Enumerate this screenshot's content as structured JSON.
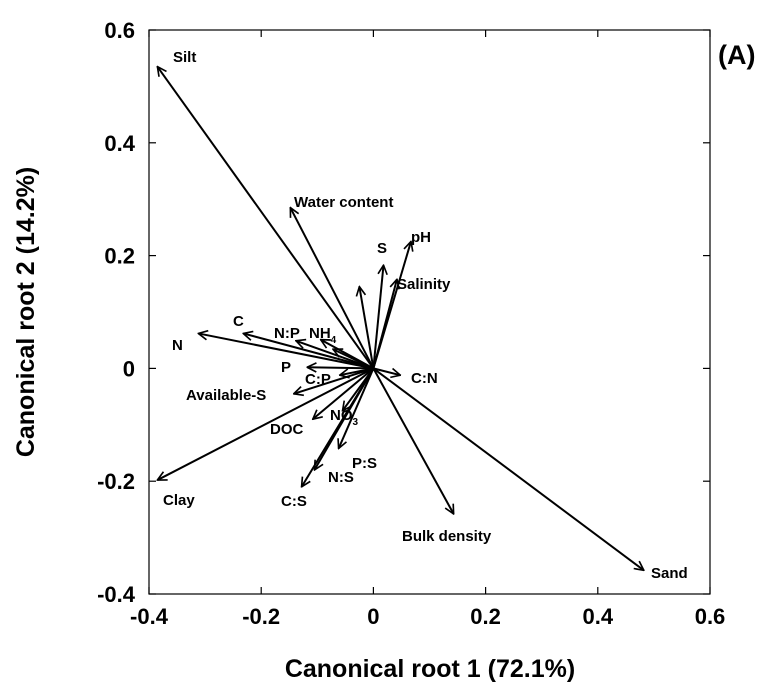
{
  "chart_data": {
    "type": "biplot",
    "panel_label": "(A)",
    "xlabel": "Canonical root 1 (72.1%)",
    "ylabel": "Canonical root 2 (14.2%)",
    "xlim": [
      -0.4,
      0.6
    ],
    "ylim": [
      -0.4,
      0.6
    ],
    "xticks": [
      -0.4,
      -0.2,
      0,
      0.2,
      0.4,
      0.6
    ],
    "yticks": [
      -0.4,
      -0.2,
      0,
      0.2,
      0.4,
      0.6
    ],
    "xtick_labels": [
      "-0.4",
      "-0.2",
      "0",
      "0.2",
      "0.4",
      "0.6"
    ],
    "ytick_labels": [
      "-0.4",
      "-0.2",
      "0",
      "0.2",
      "0.4",
      "0.6"
    ],
    "vectors": [
      {
        "name": "Silt",
        "x": -0.385,
        "y": 0.535
      },
      {
        "name": "Water content",
        "x": -0.148,
        "y": 0.285
      },
      {
        "name": "S",
        "x": 0.018,
        "y": 0.183
      },
      {
        "name": "pH",
        "x": 0.067,
        "y": 0.225
      },
      {
        "name": "Salinity",
        "x": 0.042,
        "y": 0.158
      },
      {
        "name": "",
        "x": -0.025,
        "y": 0.145
      },
      {
        "name": "C",
        "x": -0.232,
        "y": 0.062
      },
      {
        "name": "N",
        "x": -0.312,
        "y": 0.062
      },
      {
        "name": "N:P",
        "x": -0.138,
        "y": 0.049
      },
      {
        "name": "NH4",
        "x": -0.094,
        "y": 0.051
      },
      {
        "name": "",
        "x": -0.072,
        "y": 0.034
      },
      {
        "name": "P",
        "x": -0.118,
        "y": 0.002
      },
      {
        "name": "C:P",
        "x": -0.06,
        "y": -0.012
      },
      {
        "name": "C:N",
        "x": 0.048,
        "y": -0.012
      },
      {
        "name": "Available-S",
        "x": -0.142,
        "y": -0.045
      },
      {
        "name": "DOC",
        "x": -0.108,
        "y": -0.09
      },
      {
        "name": "NO3",
        "x": -0.055,
        "y": -0.075
      },
      {
        "name": "P:S",
        "x": -0.062,
        "y": -0.142
      },
      {
        "name": "N:S",
        "x": -0.105,
        "y": -0.18
      },
      {
        "name": "C:S",
        "x": -0.128,
        "y": -0.21
      },
      {
        "name": "Clay",
        "x": -0.385,
        "y": -0.198
      },
      {
        "name": "Bulk density",
        "x": 0.143,
        "y": -0.258
      },
      {
        "name": "Sand",
        "x": 0.482,
        "y": -0.358
      }
    ]
  }
}
